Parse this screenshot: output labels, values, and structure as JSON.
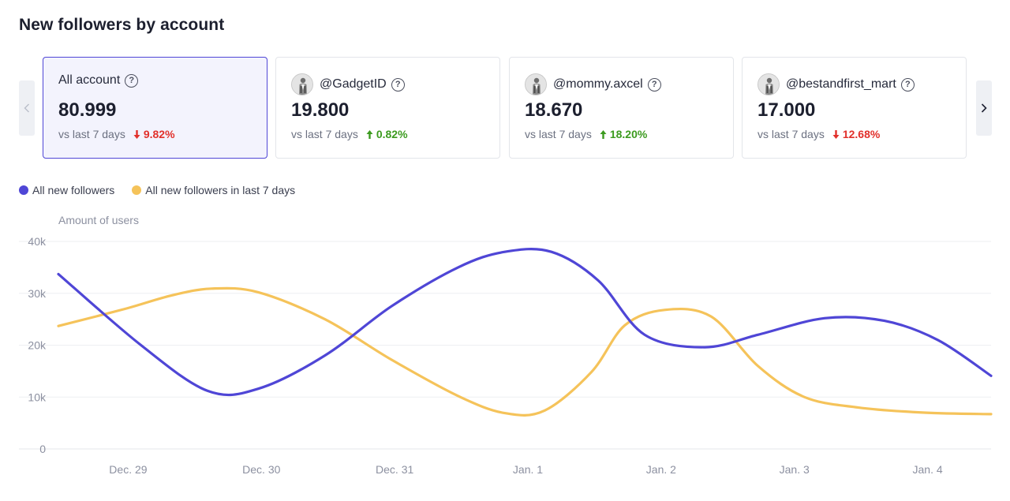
{
  "page": {
    "title": "New followers by account"
  },
  "cards": [
    {
      "name": "All account",
      "has_avatar": false,
      "value": "80.999",
      "compare": "vs last 7 days",
      "change": "9.82%",
      "direction": "down",
      "active": true
    },
    {
      "name": "@GadgetID",
      "has_avatar": true,
      "value": "19.800",
      "compare": "vs last 7 days",
      "change": "0.82%",
      "direction": "up",
      "active": false
    },
    {
      "name": "@mommy.axcel",
      "has_avatar": true,
      "value": "18.670",
      "compare": "vs last 7 days",
      "change": "18.20%",
      "direction": "up",
      "active": false
    },
    {
      "name": "@bestandfirst_mart",
      "has_avatar": true,
      "value": "17.000",
      "compare": "vs last 7 days",
      "change": "12.68%",
      "direction": "down",
      "active": false
    }
  ],
  "colors": {
    "accent": "#4f46d6",
    "series_primary": "#4f46d6",
    "series_secondary": "#f5c35a",
    "up": "#3c9b1f",
    "down": "#e1302b"
  },
  "chart_data": {
    "type": "line",
    "title": "",
    "ylabel": "Amount of users",
    "xlabel": "",
    "ylim": [
      0,
      40000
    ],
    "yticks": [
      0,
      10000,
      20000,
      30000,
      40000
    ],
    "ytick_labels": [
      "0",
      "10k",
      "20k",
      "30k",
      "40k"
    ],
    "xlim": [
      -0.5,
      6.5
    ],
    "x_ticks": [
      0,
      1,
      2,
      3,
      4,
      5,
      6
    ],
    "categories": [
      "Dec. 29",
      "Dec. 30",
      "Dec. 31",
      "Jan. 1",
      "Jan. 2",
      "Jan. 3",
      "Jan. 4"
    ],
    "grid": true,
    "legend_position": "top-left",
    "series": [
      {
        "name": "All new followers",
        "color": "#4f46d6",
        "x": [
          -0.5,
          0.12,
          0.62,
          1.0,
          1.5,
          2.0,
          2.5,
          2.85,
          3.2,
          3.55,
          3.9,
          4.35,
          4.75,
          5.25,
          5.7,
          6.1,
          6.5
        ],
        "values": [
          33700,
          20000,
          11200,
          11600,
          18000,
          27500,
          35000,
          38000,
          38000,
          32500,
          22000,
          19600,
          22000,
          25200,
          24700,
          21000,
          14100
        ]
      },
      {
        "name": "All new followers in last 7 days",
        "color": "#f5c35a",
        "x": [
          -0.5,
          0.0,
          0.35,
          0.65,
          1.0,
          1.5,
          2.0,
          2.5,
          2.85,
          3.15,
          3.5,
          3.75,
          4.05,
          4.4,
          4.75,
          5.1,
          5.5,
          6.0,
          6.5
        ],
        "values": [
          23700,
          27000,
          29600,
          30900,
          30200,
          25000,
          17200,
          10200,
          6900,
          7400,
          14800,
          23800,
          26800,
          25500,
          16000,
          10000,
          8000,
          7000,
          6700
        ]
      }
    ]
  }
}
